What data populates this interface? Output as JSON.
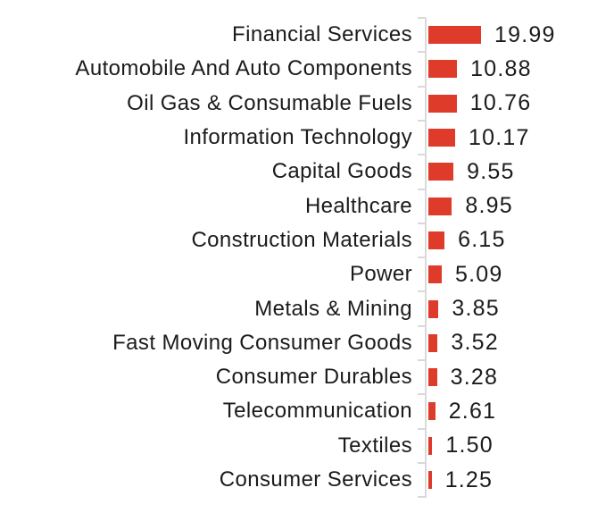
{
  "chart_data": {
    "type": "bar",
    "orientation": "horizontal",
    "title": "",
    "xlabel": "",
    "ylabel": "",
    "categories": [
      "Financial Services",
      "Automobile And Auto Components",
      "Oil Gas & Consumable Fuels",
      "Information Technology",
      "Capital Goods",
      "Healthcare",
      "Construction Materials",
      "Power",
      "Metals & Mining",
      "Fast Moving Consumer Goods",
      "Consumer Durables",
      "Telecommunication",
      "Textiles",
      "Consumer Services"
    ],
    "values": [
      19.99,
      10.88,
      10.76,
      10.17,
      9.55,
      8.95,
      6.15,
      5.09,
      3.85,
      3.52,
      3.28,
      2.61,
      1.5,
      1.25
    ],
    "value_labels": [
      "19.99",
      "10.88",
      "10.76",
      "10.17",
      "9.55",
      "8.95",
      "6.15",
      "5.09",
      "3.85",
      "3.52",
      "3.28",
      "2.61",
      "1.50",
      "1.25"
    ],
    "xlim": [
      0,
      20
    ],
    "grid": false,
    "legend": false,
    "colors": {
      "bar": "#df3b2b",
      "axis": "#d9d9d9",
      "text": "#1b1b1b",
      "background": "#ffffff"
    }
  }
}
